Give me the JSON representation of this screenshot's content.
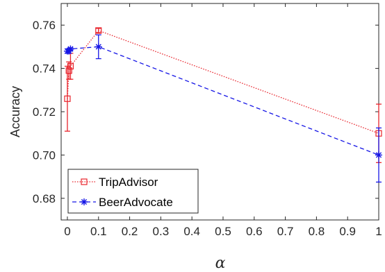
{
  "chart_data": {
    "type": "line",
    "xlabel": "α",
    "ylabel": "Accuracy",
    "xlim": [
      -0.02,
      1.0
    ],
    "ylim": [
      0.67,
      0.77
    ],
    "x_ticks": [
      0,
      0.1,
      0.2,
      0.3,
      0.4,
      0.5,
      0.6,
      0.7,
      0.8,
      0.9,
      1
    ],
    "x_tick_labels": [
      "0",
      "0.1",
      "0.2",
      "0.3",
      "0.4",
      "0.5",
      "0.6",
      "0.7",
      "0.8",
      "0.9",
      "1"
    ],
    "y_ticks": [
      0.68,
      0.7,
      0.72,
      0.74,
      0.76
    ],
    "y_tick_labels": [
      "0.68",
      "0.70",
      "0.72",
      "0.74",
      "0.76"
    ],
    "grid": false,
    "legend_position": "bottom-left",
    "series": [
      {
        "name": "TripAdvisor",
        "color": "#e8232b",
        "line_style": "dotted",
        "marker": "square",
        "x": [
          0,
          0.005,
          0.01,
          0.1,
          1
        ],
        "y": [
          0.726,
          0.739,
          0.741,
          0.7575,
          0.71
        ],
        "err": [
          0.015,
          0.004,
          0.006,
          0.001,
          0.0135
        ]
      },
      {
        "name": "BeerAdvocate",
        "color": "#1515e6",
        "line_style": "dashed",
        "marker": "asterisk",
        "x": [
          0,
          0.005,
          0.01,
          0.1,
          1
        ],
        "y": [
          0.748,
          0.748,
          0.749,
          0.75,
          0.7
        ],
        "err": [
          0.001,
          0.001,
          0.0005,
          0.0055,
          0.0125
        ]
      }
    ]
  }
}
